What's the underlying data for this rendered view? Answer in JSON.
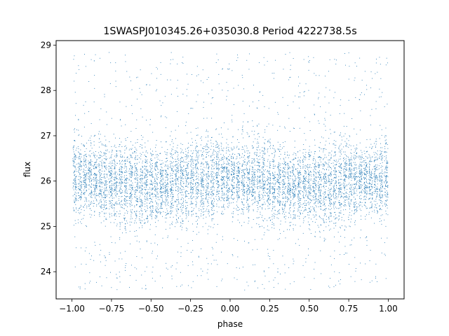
{
  "chart_data": {
    "type": "scatter",
    "title": "1SWASPJ010345.26+035030.8 Period 4222738.5s",
    "xlabel": "phase",
    "ylabel": "flux",
    "xlim": [
      -1.1,
      1.1
    ],
    "ylim": [
      23.4,
      29.1
    ],
    "xticks": [
      -1.0,
      -0.75,
      -0.5,
      -0.25,
      0.0,
      0.25,
      0.5,
      0.75,
      1.0
    ],
    "xtick_labels": [
      "−1.00",
      "−0.75",
      "−0.50",
      "−0.25",
      "0.00",
      "0.25",
      "0.50",
      "0.75",
      "1.00"
    ],
    "yticks": [
      24,
      25,
      26,
      27,
      28,
      29
    ],
    "ytick_labels": [
      "24",
      "25",
      "26",
      "27",
      "28",
      "29"
    ],
    "grid": false,
    "legend": "none",
    "series_color": "#1f77b4",
    "series": [
      {
        "phase_range": [
          -1.0,
          1.0
        ],
        "flux_core_range": [
          24.8,
          27.1
        ],
        "flux_outlier_range": [
          23.6,
          28.85
        ],
        "flux_center": 26.0,
        "notes_on_shape": "banded vertical streaks of points, symmetric about phase 0"
      }
    ]
  }
}
